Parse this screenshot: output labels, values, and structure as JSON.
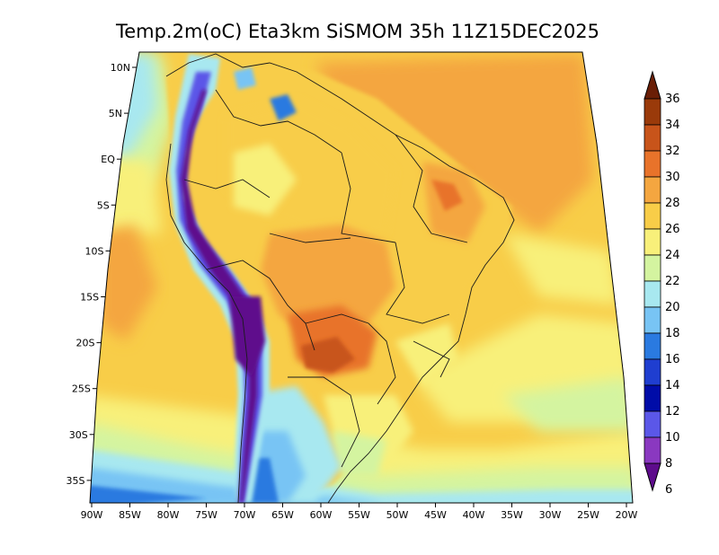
{
  "title": "Temp.2m(oC) Eta3km SiSMOM 35h 11Z15DEC2025",
  "map": {
    "lat_labels": [
      "10N",
      "5N",
      "EQ",
      "5S",
      "10S",
      "15S",
      "20S",
      "25S",
      "30S",
      "35S"
    ],
    "lon_labels": [
      "90W",
      "85W",
      "80W",
      "75W",
      "70W",
      "65W",
      "60W",
      "55W",
      "50W",
      "45W",
      "40W",
      "35W",
      "30W",
      "25W",
      "20W"
    ]
  },
  "colorbar": {
    "unit": "oC",
    "labels": [
      "36",
      "34",
      "32",
      "30",
      "28",
      "26",
      "24",
      "22",
      "20",
      "18",
      "16",
      "14",
      "12",
      "10",
      "8",
      "6"
    ],
    "colors": [
      "#6a1e06",
      "#9a3a0a",
      "#c8541a",
      "#e8732a",
      "#f4a640",
      "#f8cd48",
      "#f8f07a",
      "#d4f4a0",
      "#a8e8f0",
      "#78c4f4",
      "#2a7ae0",
      "#1f3ed0",
      "#000ca8",
      "#5b57e8",
      "#8a38c0",
      "#5e0c8c"
    ]
  }
}
